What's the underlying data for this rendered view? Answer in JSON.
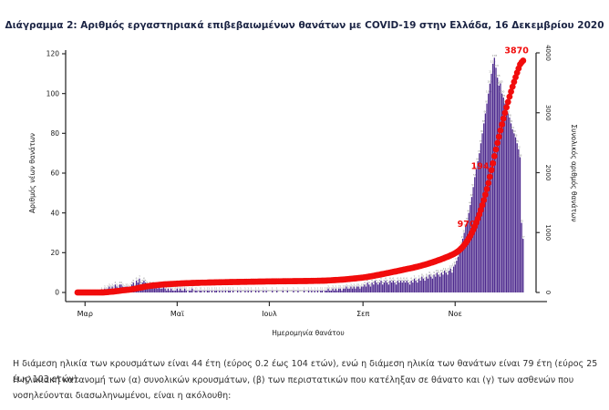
{
  "page": {
    "title": "Διάγραμμα 2: Αριθμός εργαστηριακά επιβεβαιωμένων θανάτων με COVID-19 στην Ελλάδα, 16 Δεκεμβρίου 2020",
    "paragraphs": {
      "p1": "Η διάμεση ηλικία των κρουσμάτων είναι 44 έτη (εύρος 0.2 έως 104 ετών), ενώ η διάμεση ηλικία των θανάτων είναι 79 έτη (εύρος 25 έως 103 ετών).",
      "p2": "Η ηλικιακή κατανομή των (α) συνολικών κρουσμάτων, (β) των περιστατικών που κατέληξαν σε θάνατο και (γ) των ασθενών που νοσηλεύονται διασωληνωμένοι, είναι η ακόλουθη:"
    }
  },
  "chart_data": {
    "type": "bar",
    "combo": "daily bars + cumulative line",
    "x_axis": {
      "label": "Ημερομηνία θανάτου",
      "ticks": [
        {
          "label": "Μαρ",
          "day_index": 5
        },
        {
          "label": "Μαϊ",
          "day_index": 66
        },
        {
          "label": "Ιουλ",
          "day_index": 127
        },
        {
          "label": "Σεπ",
          "day_index": 189
        },
        {
          "label": "Νοε",
          "day_index": 250
        }
      ]
    },
    "y_axis_left": {
      "label": "Αριθμός νέων θανάτων",
      "ticks": [
        0,
        20,
        40,
        60,
        80,
        100,
        120
      ],
      "ylim": [
        0,
        120
      ]
    },
    "y_axis_right": {
      "label": "Συνολικός αριθμός θανάτων",
      "ticks": [
        0,
        1000,
        2000,
        3000,
        4000
      ],
      "ylim": [
        0,
        4000
      ]
    },
    "series": [
      {
        "name": "daily-deaths-bars",
        "type": "bar",
        "color": "#4e2a8e",
        "value_label_color": "#8a8a8a",
        "values": [
          0,
          0,
          0,
          0,
          0,
          0,
          0,
          0,
          0,
          0,
          0,
          0,
          0,
          0,
          0,
          0,
          1,
          0,
          2,
          1,
          2,
          3,
          2,
          3,
          2,
          4,
          3,
          2,
          4,
          4,
          3,
          2,
          3,
          3,
          2,
          3,
          4,
          5,
          3,
          6,
          5,
          7,
          4,
          5,
          6,
          5,
          4,
          3,
          4,
          3,
          4,
          2,
          3,
          2,
          3,
          2,
          2,
          3,
          2,
          1,
          2,
          1,
          2,
          1,
          1,
          1,
          2,
          1,
          2,
          1,
          1,
          2,
          1,
          0,
          1,
          1,
          2,
          0,
          1,
          1,
          0,
          1,
          1,
          0,
          1,
          0,
          1,
          1,
          0,
          1,
          0,
          1,
          1,
          0,
          1,
          0,
          1,
          0,
          1,
          0,
          1,
          1,
          0,
          1,
          0,
          0,
          1,
          0,
          1,
          0,
          0,
          1,
          0,
          1,
          0,
          1,
          0,
          0,
          1,
          0,
          1,
          0,
          0,
          1,
          0,
          1,
          0,
          0,
          0,
          1,
          0,
          0,
          1,
          0,
          0,
          0,
          1,
          0,
          0,
          1,
          0,
          0,
          0,
          1,
          0,
          0,
          1,
          0,
          0,
          0,
          1,
          0,
          0,
          1,
          0,
          1,
          0,
          1,
          0,
          1,
          0,
          1,
          1,
          0,
          1,
          1,
          2,
          1,
          1,
          2,
          1,
          2,
          1,
          2,
          2,
          1,
          2,
          2,
          3,
          2,
          2,
          3,
          2,
          3,
          2,
          3,
          3,
          2,
          3,
          3,
          4,
          3,
          5,
          4,
          3,
          5,
          4,
          6,
          5,
          4,
          5,
          6,
          4,
          5,
          6,
          5,
          4,
          6,
          5,
          6,
          5,
          4,
          6,
          5,
          6,
          5,
          6,
          5,
          6,
          5,
          4,
          6,
          5,
          7,
          6,
          5,
          7,
          6,
          8,
          7,
          6,
          8,
          7,
          9,
          8,
          7,
          9,
          8,
          10,
          9,
          8,
          10,
          9,
          11,
          10,
          9,
          11,
          12,
          10,
          13,
          14,
          16,
          18,
          21,
          24,
          27,
          30,
          33,
          36,
          40,
          44,
          48,
          53,
          58,
          62,
          66,
          70,
          75,
          80,
          85,
          90,
          95,
          100,
          105,
          110,
          115,
          118,
          113,
          108,
          104,
          105,
          100,
          98,
          95,
          92,
          90,
          88,
          85,
          82,
          80,
          78,
          75,
          72,
          68,
          35,
          27
        ]
      },
      {
        "name": "cumulative-deaths-line",
        "type": "line",
        "color": "#f10c0c",
        "note": "running sum of the daily bar values, final value 3870"
      }
    ],
    "annotations": [
      {
        "label": "970",
        "day_index": 261
      },
      {
        "label": "1941",
        "day_index": 274
      },
      {
        "label": "3870",
        "day_index": 295
      }
    ],
    "grid": false,
    "legend": false
  }
}
